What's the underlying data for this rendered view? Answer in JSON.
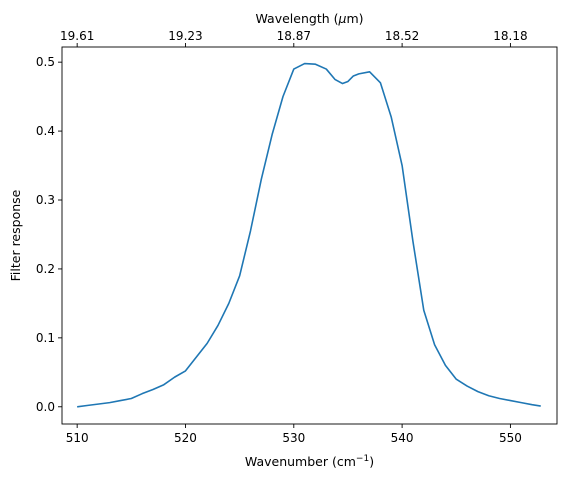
{
  "chart_data": {
    "type": "line",
    "title": "",
    "xlabel": "Wavenumber (cm⁻¹)",
    "xlabel_parts": [
      "Wavenumber (cm",
      "−1",
      ")"
    ],
    "ylabel": "Filter response",
    "top_xlabel": "Wavelength (μm)",
    "top_xlabel_parts": [
      "Wavelength (",
      "μ",
      "m)"
    ],
    "xlim": [
      508.6,
      554.3
    ],
    "ylim": [
      -0.025,
      0.522
    ],
    "x_ticks": [
      510,
      520,
      530,
      540,
      550
    ],
    "x_tick_labels": [
      "510",
      "520",
      "530",
      "540",
      "550"
    ],
    "y_ticks": [
      0.0,
      0.1,
      0.2,
      0.3,
      0.4,
      0.5
    ],
    "y_tick_labels": [
      "0.0",
      "0.1",
      "0.2",
      "0.3",
      "0.4",
      "0.5"
    ],
    "top_ticks_at_wavenumber": [
      510,
      520,
      530,
      540,
      550
    ],
    "top_tick_labels": [
      "19.61",
      "19.23",
      "18.87",
      "18.52",
      "18.18"
    ],
    "grid": false,
    "legend": "none",
    "series": [
      {
        "color": "#1f77b4",
        "x": [
          510,
          511,
          512,
          513,
          514,
          515,
          516,
          517,
          518,
          519,
          520,
          521,
          522,
          523,
          524,
          525,
          526,
          527,
          528,
          529,
          530,
          531,
          532,
          533,
          533.8,
          534.5,
          535,
          535.5,
          536,
          537,
          538,
          539,
          540,
          541,
          542,
          543,
          544,
          545,
          546,
          547,
          548,
          549,
          550,
          551,
          552,
          552.8
        ],
        "y": [
          0.0,
          0.002,
          0.004,
          0.006,
          0.009,
          0.012,
          0.019,
          0.025,
          0.032,
          0.043,
          0.052,
          0.072,
          0.092,
          0.118,
          0.15,
          0.19,
          0.255,
          0.33,
          0.395,
          0.45,
          0.49,
          0.498,
          0.497,
          0.49,
          0.475,
          0.469,
          0.472,
          0.48,
          0.483,
          0.486,
          0.47,
          0.42,
          0.35,
          0.24,
          0.14,
          0.09,
          0.06,
          0.04,
          0.03,
          0.022,
          0.016,
          0.012,
          0.009,
          0.006,
          0.003,
          0.001
        ]
      }
    ]
  }
}
